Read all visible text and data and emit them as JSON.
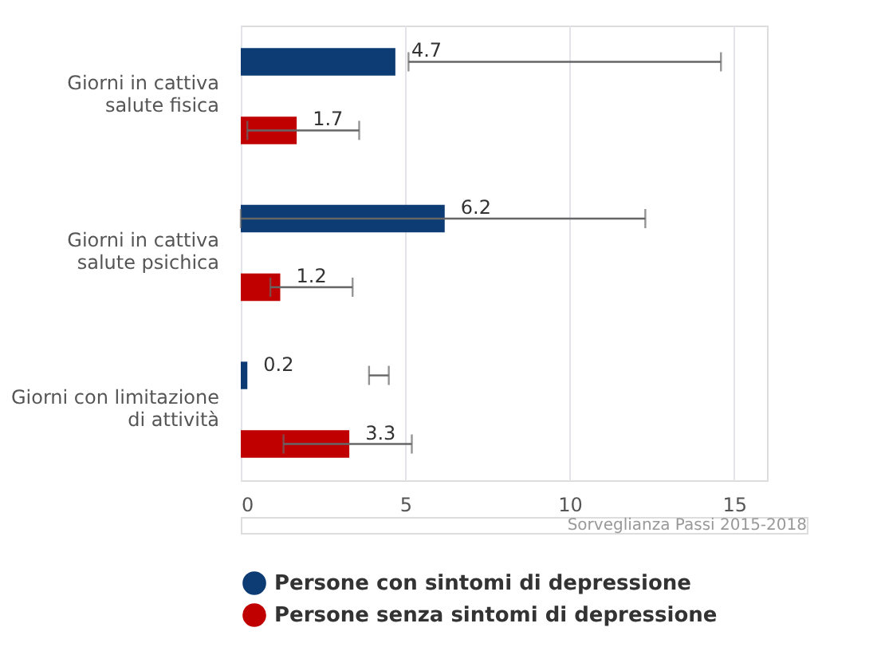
{
  "chart_data": {
    "type": "bar",
    "orientation": "horizontal",
    "categories": [
      "Giorni in cattiva salute fisica",
      "Giorni in cattiva salute psichica",
      "Giorni con limitazione di attività"
    ],
    "series": [
      {
        "name": "Persone con sintomi di depressione",
        "color": "#0d3b73",
        "values": [
          4.7,
          6.2,
          0.2
        ],
        "errors": [
          [
            5.1,
            14.6
          ],
          [
            0.0,
            12.3
          ],
          [
            3.9,
            4.5
          ]
        ]
      },
      {
        "name": "Persone senza sintomi di depressione",
        "color": "#c00000",
        "values": [
          1.7,
          1.2,
          3.3
        ],
        "errors": [
          [
            0.2,
            3.6
          ],
          [
            0.9,
            3.4
          ],
          [
            1.3,
            5.2
          ]
        ]
      }
    ],
    "xlim": [
      0,
      16
    ],
    "xticks": [
      0,
      5,
      10,
      15
    ],
    "grid": "x",
    "legend": "bottom",
    "data_labels": true,
    "annotations": [
      "Sorveglianza Passi 2015-2018"
    ]
  }
}
